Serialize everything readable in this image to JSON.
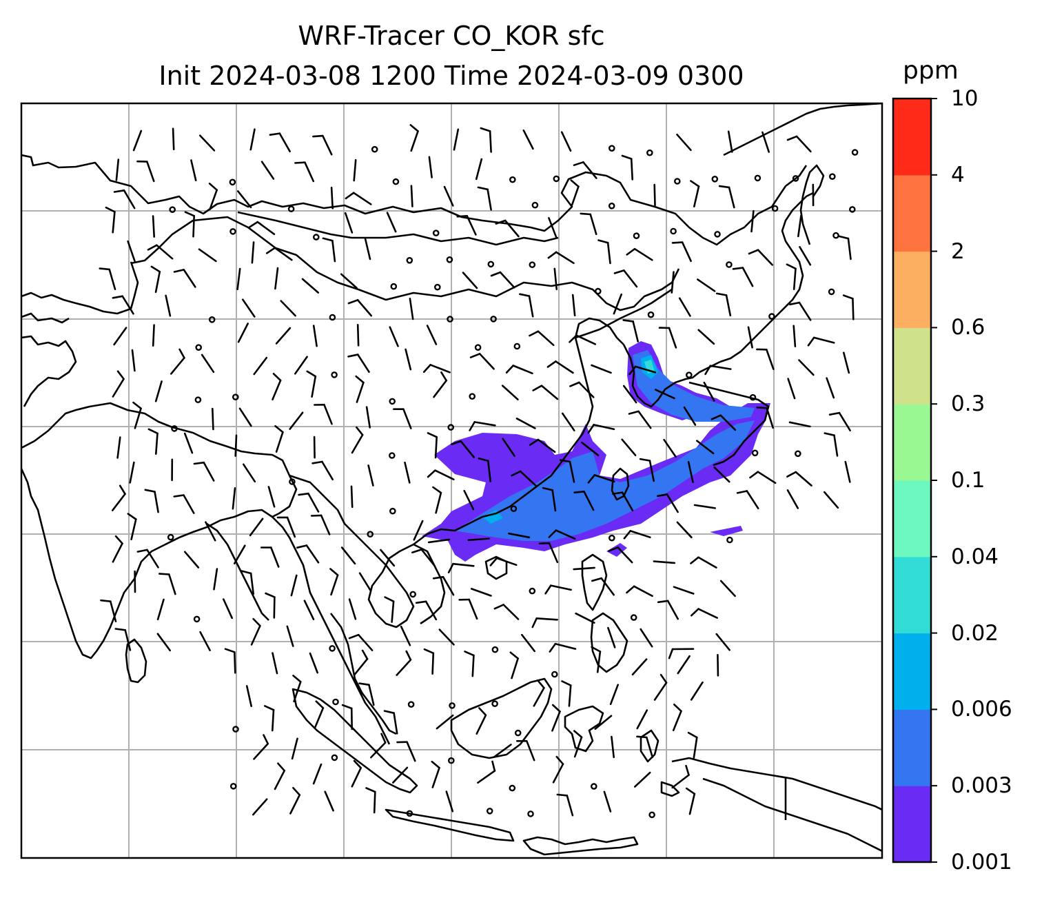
{
  "title": {
    "line1": "WRF-Tracer CO_KOR sfc",
    "line2": "Init 2024-03-08 1200 Time 2024-03-09 0300"
  },
  "colorbar": {
    "units": "ppm",
    "levels": [
      "0.001",
      "0.003",
      "0.006",
      "0.02",
      "0.04",
      "0.1",
      "0.3",
      "0.6",
      "2",
      "4",
      "10"
    ],
    "colors": [
      "#6a2cf5",
      "#3476f2",
      "#00b0ed",
      "#32dcd6",
      "#6cf8bf",
      "#9af893",
      "#cfe28b",
      "#fcae61",
      "#ff7341",
      "#ff2a18"
    ]
  },
  "map": {
    "gridlines": true,
    "plume_colors": [
      "#6a2cf5",
      "#3476f2",
      "#00b0ed",
      "#32dcd6"
    ],
    "barb_color": "#000000",
    "coastline_color": "#000000"
  }
}
